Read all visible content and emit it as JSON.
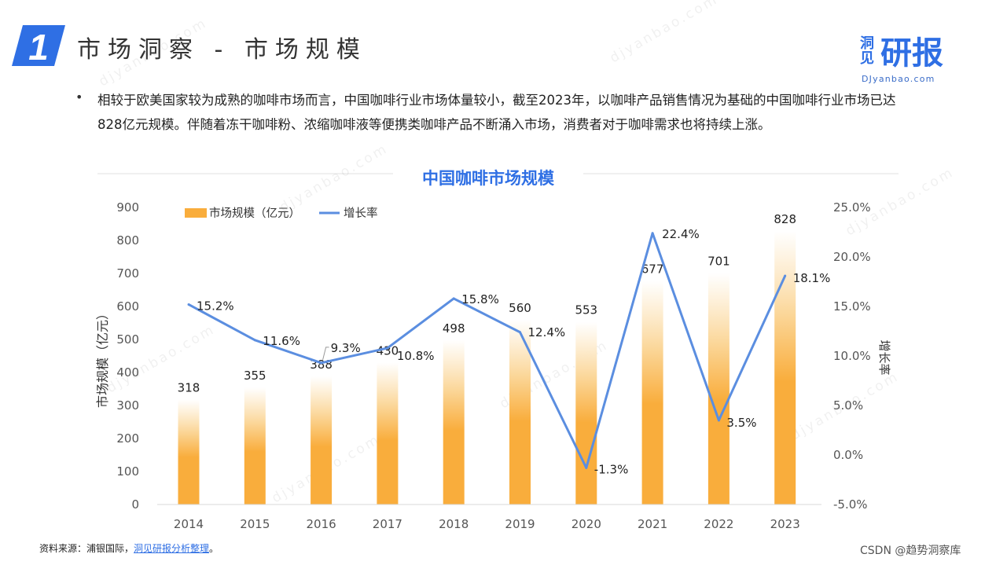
{
  "header": {
    "section_number": "1",
    "title": "市场洞察 - 市场规模"
  },
  "brand": {
    "small_text": "洞见",
    "big_text": "研报",
    "url": "DJyanbao.com"
  },
  "watermark": "djyanbao.com",
  "bullet": {
    "text": "相较于欧美国家较为成熟的咖啡市场而言，中国咖啡行业市场体量较小，截至2023年，以咖啡产品销售情况为基础的中国咖啡行业市场已达828亿元规模。伴随着冻干咖啡粉、浓缩咖啡液等便携类咖啡产品不断涌入市场，消费者对于咖啡需求也将持续上涨。"
  },
  "colors": {
    "bar": "#f9ad3c",
    "line": "#5b8ee0",
    "title": "#2f6fe4",
    "axis_text": "#555555"
  },
  "chart_data": {
    "type": "bar",
    "title": "中国咖啡市场规模",
    "categories": [
      "2014",
      "2015",
      "2016",
      "2017",
      "2018",
      "2019",
      "2020",
      "2021",
      "2022",
      "2023"
    ],
    "series": [
      {
        "name": "市场规模（亿元）",
        "type": "bar",
        "axis": "left",
        "values": [
          318,
          355,
          388,
          430,
          498,
          560,
          553,
          677,
          701,
          828
        ],
        "labels": [
          "318",
          "355",
          "388",
          "430",
          "498",
          "560",
          "553",
          "677",
          "701",
          "828"
        ]
      },
      {
        "name": "增长率",
        "type": "line",
        "axis": "right",
        "values": [
          15.2,
          11.6,
          9.3,
          10.8,
          15.8,
          12.4,
          -1.3,
          22.4,
          3.5,
          18.1
        ],
        "labels": [
          "15.2%",
          "11.6%",
          "9.3%",
          "10.8%",
          "15.8%",
          "12.4%",
          "-1.3%",
          "22.4%",
          "3.5%",
          "18.1%"
        ]
      }
    ],
    "ylabel": "市场规模（亿元）",
    "y2label": "增长率",
    "ylim": [
      0,
      900
    ],
    "y2lim": [
      -5,
      25
    ],
    "yticks": [
      "0",
      "100",
      "200",
      "300",
      "400",
      "500",
      "600",
      "700",
      "800",
      "900"
    ],
    "y2ticks": [
      "-5.0%",
      "0.0%",
      "5.0%",
      "10.0%",
      "15.0%",
      "20.0%",
      "25.0%"
    ],
    "grid": false,
    "legend_position": "top-left"
  },
  "footer": {
    "source_prefix": "资料来源：浦银国际，",
    "source_link": "洞见研报分析整理",
    "source_suffix": "。",
    "credit": "CSDN @趋势洞察库"
  }
}
